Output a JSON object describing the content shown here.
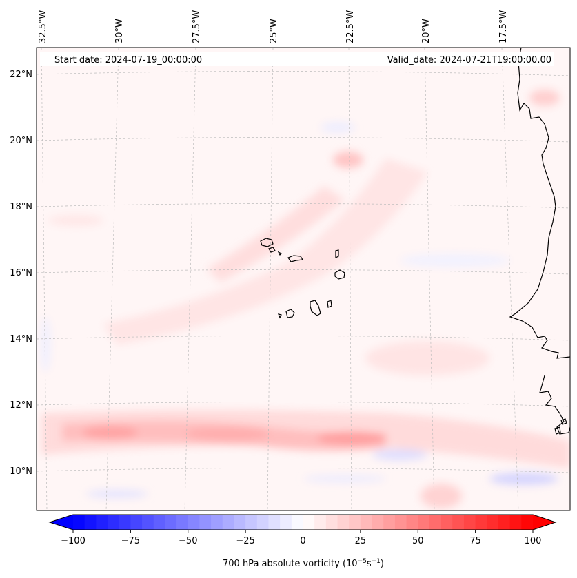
{
  "header": {
    "start_date": "Start date: 2024-07-19_00:00:00",
    "valid_date": "Valid_date: 2024-07-21T19:00:00.00"
  },
  "longitude_labels": [
    "32.5°W",
    "30°W",
    "27.5°W",
    "25°W",
    "22.5°W",
    "20°W",
    "17.5°W"
  ],
  "latitude_labels": [
    "22°N",
    "20°N",
    "18°N",
    "16°N",
    "14°N",
    "12°N",
    "10°N"
  ],
  "colorbar": {
    "label": "700 hPa absolute vorticity (10",
    "label_exp1": "−5",
    "label_mid": "s",
    "label_exp2": "−1",
    "label_end": ")",
    "ticks": [
      "−100",
      "−75",
      "−50",
      "−25",
      "0",
      "25",
      "50",
      "75",
      "100"
    ],
    "min": -100,
    "max": 100,
    "colors": {
      "negative": "#0000ff",
      "zero": "#ffffff",
      "positive": "#ff0000"
    }
  },
  "colors": {
    "coastline": "#000000",
    "gridline": "#bbbbbb",
    "frame": "#000000"
  }
}
